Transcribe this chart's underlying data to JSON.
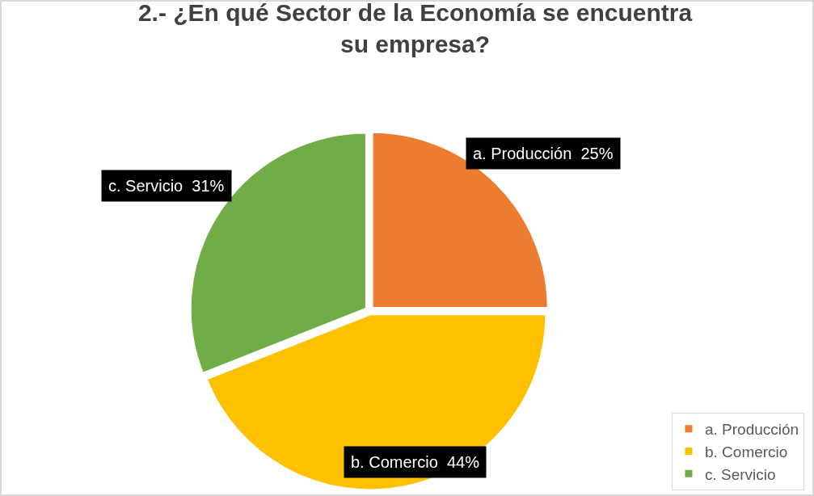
{
  "chart_data": {
    "type": "pie",
    "title": "2.- ¿En qué Sector de la Economía se encuentra su empresa?",
    "categories": [
      "a. Producción",
      "b. Comercio",
      "c. Servicio"
    ],
    "values": [
      25,
      44,
      31
    ],
    "value_labels": [
      "25%",
      "44%",
      "31%"
    ],
    "colors": [
      "#ed7d31",
      "#ffc000",
      "#70ad47"
    ],
    "legend": "bottom right"
  }
}
